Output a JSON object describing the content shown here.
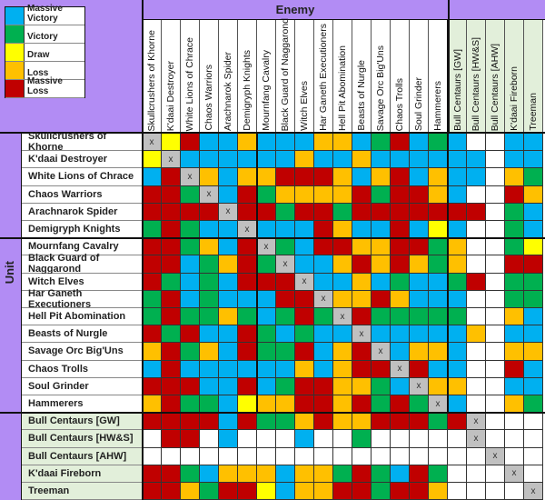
{
  "legend": [
    {
      "code": "B",
      "label": "Massive Victory",
      "color": "#00b0f0"
    },
    {
      "code": "G",
      "label": "Victory",
      "color": "#00b050"
    },
    {
      "code": "Y",
      "label": "Draw",
      "color": "#ffff00"
    },
    {
      "code": "O",
      "label": "Loss",
      "color": "#ffc000"
    },
    {
      "code": "R",
      "label": "Massive Loss",
      "color": "#c00000"
    }
  ],
  "colors": {
    "X": "#c0c0c0",
    "W": "#ffffff",
    "purple": "#b28cf4",
    "alt_bg": "#e2efda"
  },
  "enemy_label": "Enemy",
  "unit_label": "Unit",
  "self_marker": "x",
  "columns": [
    "Skullcrushers of Khorne",
    "K'daai Destroyer",
    "White Lions of Chrace",
    "Chaos Warriors",
    "Arachnarok Spider",
    "Demigryph Knights",
    "Mournfang Cavalry",
    "Black Guard of Naggarond",
    "Witch Elves",
    "Har Ganeth Executioners",
    "Hell Pit Abomination",
    "Beasts of Nurgle",
    "Savage Orc Big'Uns",
    "Chaos Trolls",
    "Soul Grinder",
    "Hammerers",
    "Bull Centaurs [GW]",
    "Bull Centaurs [HW&S]",
    "Bull Centaurs [AHW]",
    "K'daai Fireborn",
    "Treeman"
  ],
  "rows": [
    {
      "unit": "Skullcrushers of Khorne",
      "results": "XYRBBOBBBOOBGRBGBWWBB"
    },
    {
      "unit": "K'daai Destroyer",
      "results": "YXBBBBBBOBBOBBBBBBWBB"
    },
    {
      "unit": "White Lions of Chrace",
      "results": "BRXOBOORRROBORBOBBWOG"
    },
    {
      "unit": "Chaos Warriors",
      "results": "RRGXBRGOOOORGRROBWWRO"
    },
    {
      "unit": "Arachnarok Spider",
      "results": "RRRRXRRGRRGRRRRRRRWGB"
    },
    {
      "unit": "Demigryph Knights",
      "results": "GRGBBXBBBROBBRBYBWWGB"
    },
    {
      "unit": "Mournfang Cavalry",
      "results": "RRGOBRXGBRROORRGOWWGY"
    },
    {
      "unit": "Black Guard of Naggarond",
      "results": "RRBGORGXBBOROROGOWWRR"
    },
    {
      "unit": "Witch Elves",
      "results": "RGBGBRRRXBBOBGBBGRWGG"
    },
    {
      "unit": "Har Ganeth Executioners",
      "results": "GRBGBBBRRXOOROBBBWWGG"
    },
    {
      "unit": "Hell Pit Abomination",
      "results": "GRGGOGBGRGXRGGGGGWWOB"
    },
    {
      "unit": "Beasts of Nurgle",
      "results": "RGRBBRGBGBBXBBBBBOWBB"
    },
    {
      "unit": "Savage Orc Big'Uns",
      "results": "ORGOBRGGRBORXBOOBWWOO"
    },
    {
      "unit": "Chaos Trolls",
      "results": "BRBBBBBBOBORRXRBBWWRB"
    },
    {
      "unit": "Soul Grinder",
      "results": "RRRBBRBGRROOGBXOOWWBB"
    },
    {
      "unit": "Hammerers",
      "results": "ORGGBYOORRORGRGXBWWOG"
    },
    {
      "unit": "Bull Centaurs [GW]",
      "results": "RRRRBRGGOROORRRGRXWWW"
    },
    {
      "unit": "Bull Centaurs [HW&S]",
      "results": "WRRWBWWWBWWGWWWWWXWWW"
    },
    {
      "unit": "Bull Centaurs [AHW]",
      "results": "WWWWWWWWWWWWWWWWWWXWW"
    },
    {
      "unit": "K'daai Fireborn",
      "results": "RRGBOOOBOOGRGBRGWWWXW"
    },
    {
      "unit": "Treeman",
      "results": "RROGRRYBOORRGRROWWWWX"
    }
  ]
}
